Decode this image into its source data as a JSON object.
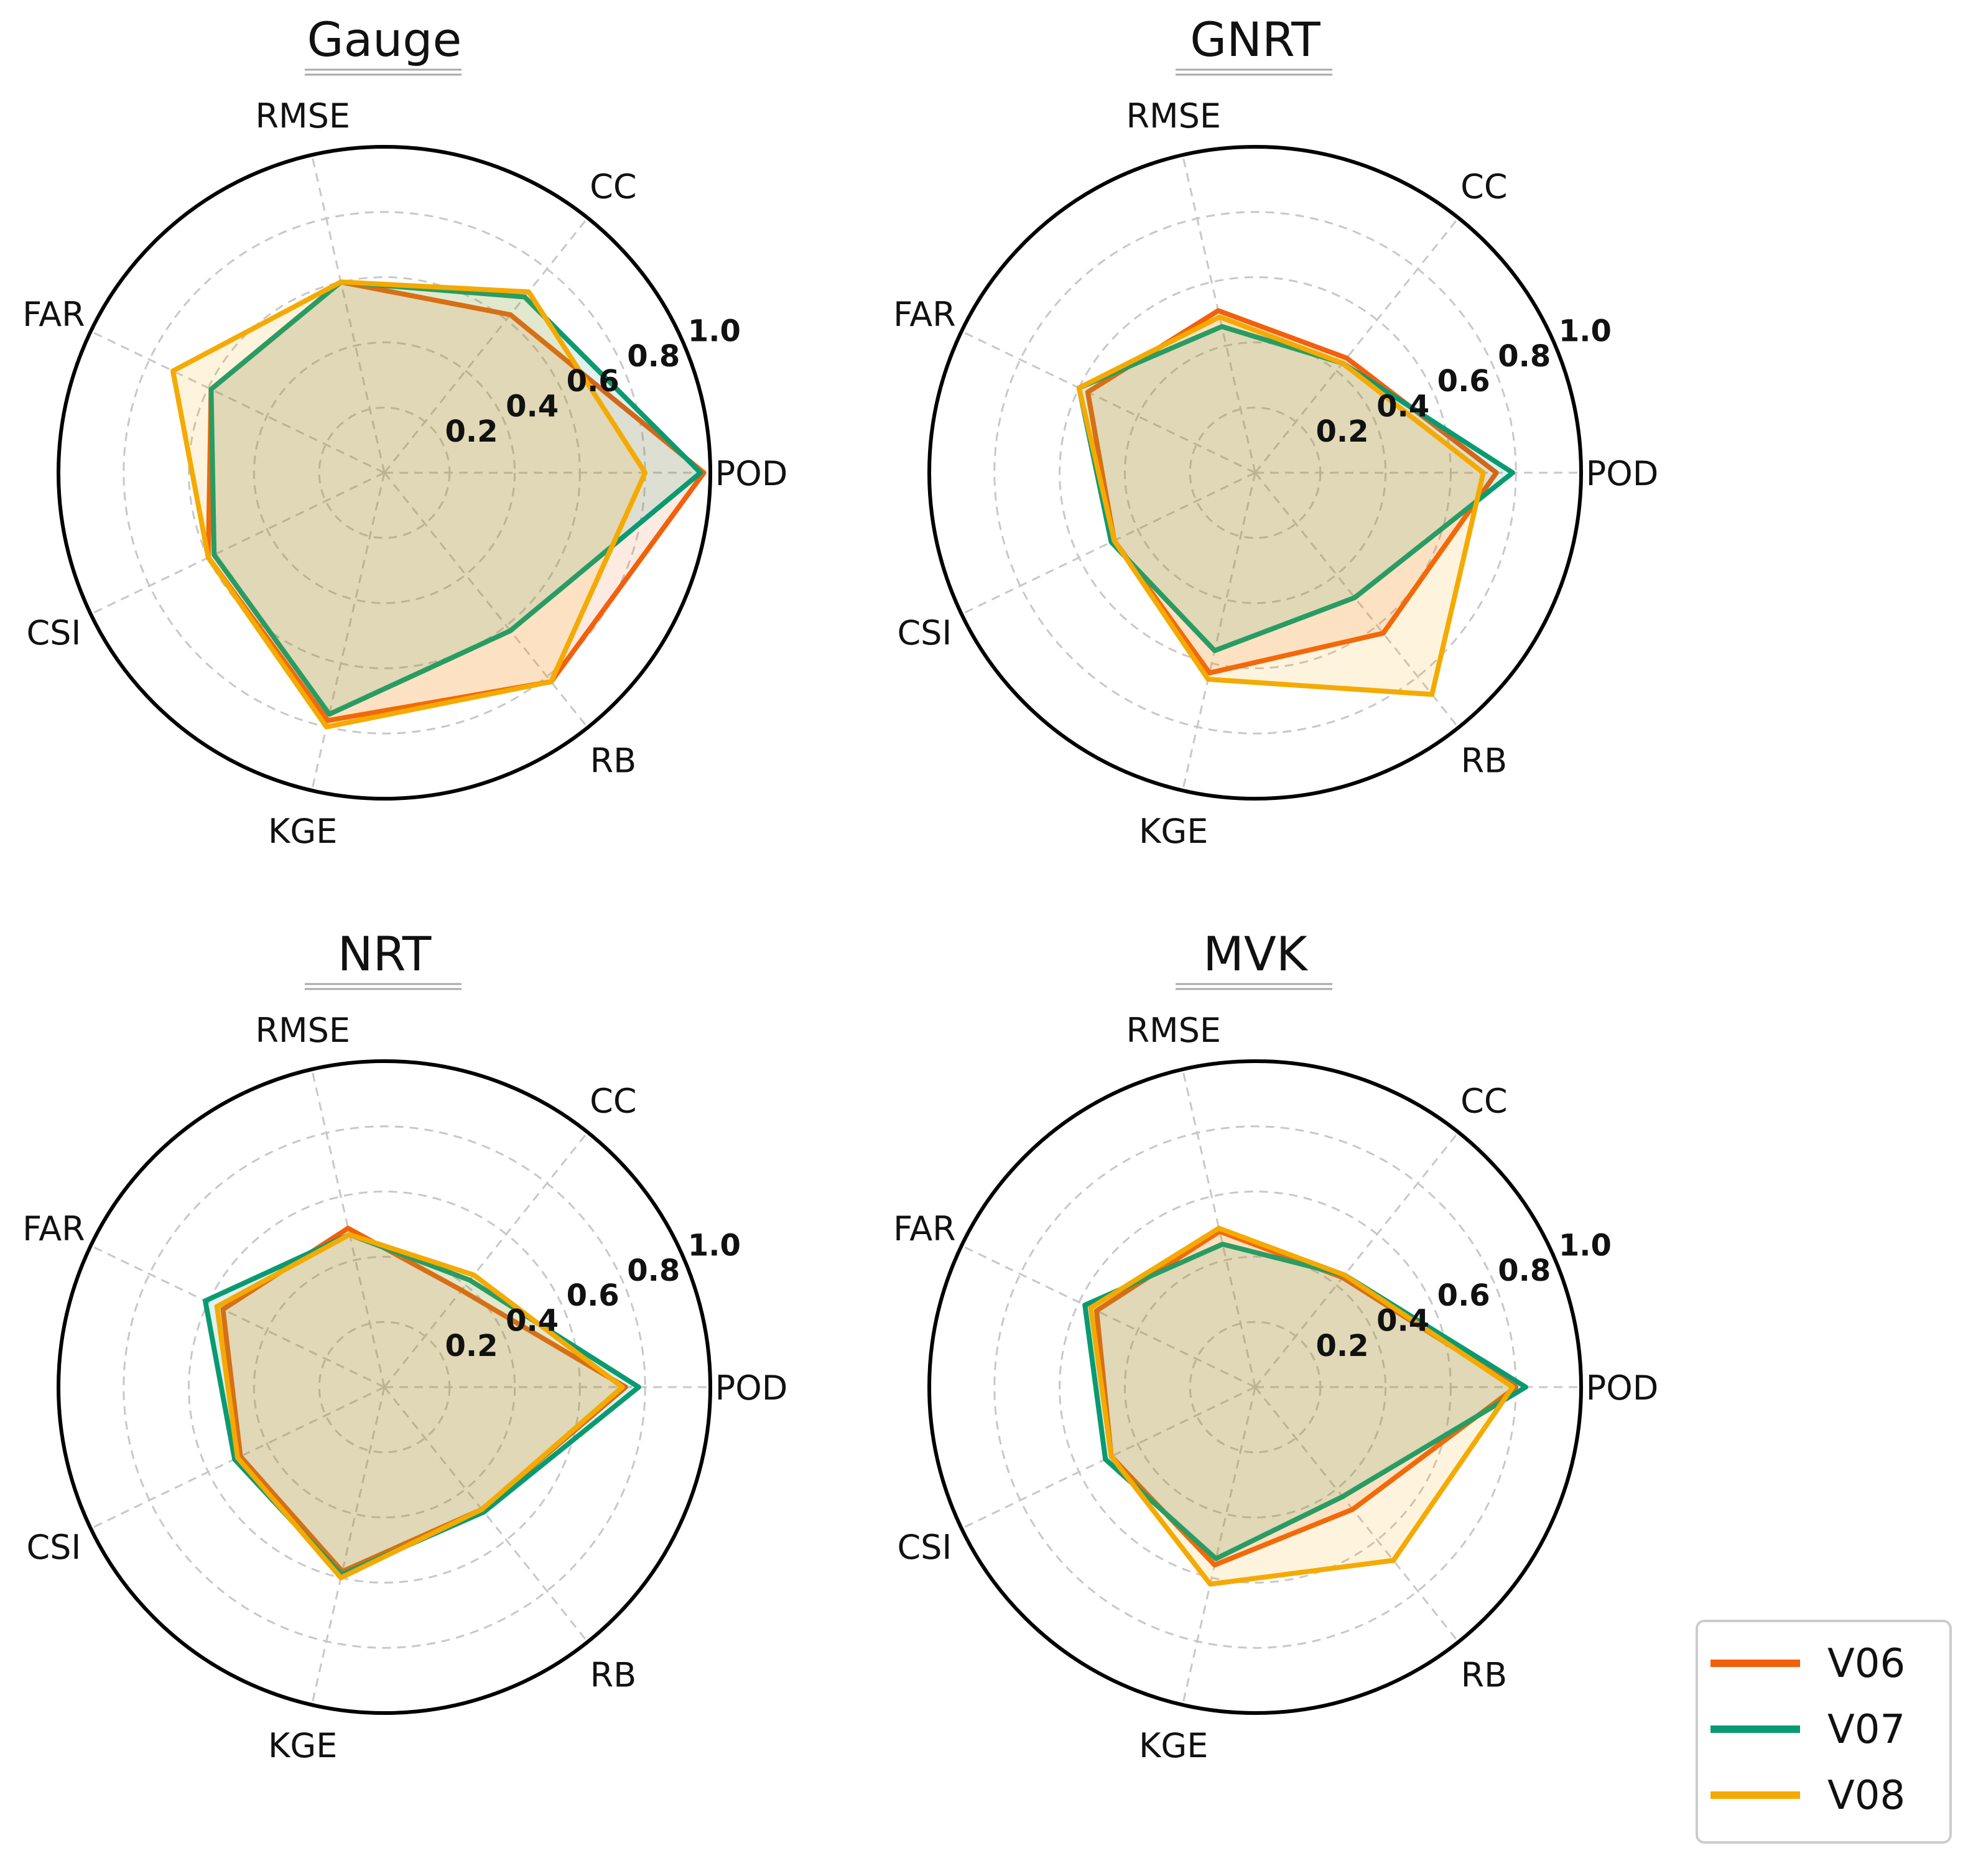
{
  "chart_data": {
    "type": "radar",
    "axes": [
      "POD",
      "CC",
      "RMSE",
      "FAR",
      "CSI",
      "KGE",
      "RB"
    ],
    "rlim": [
      0,
      1.0
    ],
    "rticks": [
      "0.2",
      "0.4",
      "0.6",
      "0.8",
      "1.0"
    ],
    "grid": true,
    "legend": {
      "placement": "bottom-right",
      "entries": [
        "V06",
        "V07",
        "V08"
      ]
    },
    "colors": {
      "V06": "#f2600c",
      "V07": "#0a9a72",
      "V08": "#f4aa00"
    },
    "panels": [
      {
        "title": "Gauge",
        "series": [
          {
            "name": "V06",
            "values": [
              0.98,
              0.62,
              0.6,
              0.59,
              0.6,
              0.78,
              0.82
            ]
          },
          {
            "name": "V07",
            "values": [
              0.97,
              0.69,
              0.6,
              0.59,
              0.58,
              0.76,
              0.62
            ]
          },
          {
            "name": "V08",
            "values": [
              0.8,
              0.71,
              0.6,
              0.72,
              0.6,
              0.8,
              0.82
            ]
          }
        ]
      },
      {
        "title": "GNRT",
        "series": [
          {
            "name": "V06",
            "values": [
              0.74,
              0.45,
              0.51,
              0.57,
              0.48,
              0.63,
              0.63
            ]
          },
          {
            "name": "V07",
            "values": [
              0.79,
              0.43,
              0.46,
              0.6,
              0.49,
              0.56,
              0.49
            ]
          },
          {
            "name": "V08",
            "values": [
              0.7,
              0.43,
              0.49,
              0.6,
              0.48,
              0.65,
              0.87
            ]
          }
        ]
      },
      {
        "title": "NRT",
        "series": [
          {
            "name": "V06",
            "values": [
              0.74,
              0.38,
              0.5,
              0.55,
              0.49,
              0.58,
              0.48
            ]
          },
          {
            "name": "V07",
            "values": [
              0.78,
              0.42,
              0.48,
              0.61,
              0.51,
              0.59,
              0.49
            ]
          },
          {
            "name": "V08",
            "values": [
              0.73,
              0.44,
              0.48,
              0.57,
              0.5,
              0.6,
              0.48
            ]
          }
        ]
      },
      {
        "title": "MVK",
        "series": [
          {
            "name": "V06",
            "values": [
              0.8,
              0.43,
              0.49,
              0.54,
              0.49,
              0.56,
              0.48
            ]
          },
          {
            "name": "V07",
            "values": [
              0.83,
              0.44,
              0.45,
              0.58,
              0.51,
              0.54,
              0.43
            ]
          },
          {
            "name": "V08",
            "values": [
              0.79,
              0.44,
              0.5,
              0.56,
              0.49,
              0.62,
              0.68
            ]
          }
        ]
      }
    ]
  }
}
